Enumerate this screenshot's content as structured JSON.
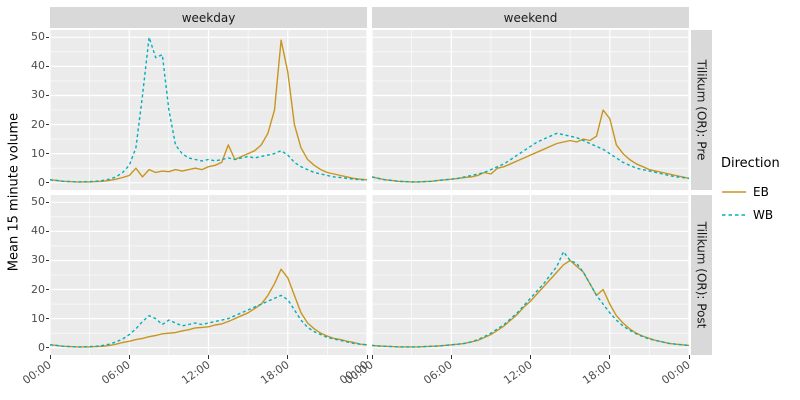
{
  "figure": {
    "y_axis_title": "Mean 15 minute volume",
    "facet_cols": [
      "weekday",
      "weekend"
    ],
    "facet_rows": [
      "Tilikum (OR): Pre",
      "Tilikum (OR): Post"
    ],
    "x_tick_values": [
      0,
      6,
      12,
      18,
      24
    ],
    "x_tick_labels": [
      "00:00",
      "06:00",
      "12:00",
      "18:00",
      "00:00"
    ],
    "y_tick_values": [
      0,
      10,
      20,
      30,
      40,
      50
    ],
    "y_tick_labels": [
      "0",
      "10",
      "20",
      "30",
      "40",
      "50"
    ],
    "colors": {
      "EB": "#C8961E",
      "WB": "#00AFBB",
      "panel_bg": "#EBEBEB",
      "strip_bg": "#D9D9D9",
      "grid": "#FFFFFF",
      "axis_text": "#4D4D4D"
    }
  },
  "legend": {
    "title": "Direction",
    "entries": [
      {
        "label": "EB",
        "style": "solid"
      },
      {
        "label": "WB",
        "style": "dashed"
      }
    ]
  },
  "chart_data": {
    "type": "line",
    "x_unit": "hour of day",
    "ylim": [
      0,
      50
    ],
    "x": [
      0,
      0.5,
      1,
      1.5,
      2,
      2.5,
      3,
      3.5,
      4,
      4.5,
      5,
      5.5,
      6,
      6.5,
      7,
      7.5,
      8,
      8.5,
      9,
      9.5,
      10,
      10.5,
      11,
      11.5,
      12,
      12.5,
      13,
      13.5,
      14,
      14.5,
      15,
      15.5,
      16,
      16.5,
      17,
      17.5,
      18,
      18.5,
      19,
      19.5,
      20,
      20.5,
      21,
      21.5,
      22,
      22.5,
      23,
      23.5,
      24
    ],
    "panels": [
      {
        "facet_row": "Tilikum (OR): Pre",
        "facet_col": "weekday",
        "series": [
          {
            "name": "EB",
            "values": [
              1,
              0.8,
              0.5,
              0.4,
              0.3,
              0.3,
              0.3,
              0.4,
              0.5,
              0.8,
              1.2,
              1.8,
              2.5,
              5,
              2,
              4.5,
              3.5,
              4,
              3.8,
              4.5,
              4,
              4.5,
              5,
              4.5,
              5.5,
              6,
              7,
              13,
              8,
              9,
              10,
              11,
              13,
              17,
              25,
              49,
              38,
              20,
              12,
              8,
              6,
              4.5,
              3.5,
              3,
              2.5,
              2,
              1.5,
              1.2,
              1
            ]
          },
          {
            "name": "WB",
            "values": [
              1,
              0.8,
              0.5,
              0.4,
              0.3,
              0.3,
              0.4,
              0.5,
              0.8,
              1.2,
              2,
              3.5,
              6,
              12,
              30,
              50,
              43,
              44,
              25,
              13,
              10,
              8.5,
              8,
              7.5,
              8,
              7.5,
              8,
              8.5,
              8,
              8.5,
              9,
              8.5,
              9,
              9.5,
              10,
              11,
              9.5,
              7,
              5.5,
              4.5,
              3.5,
              3,
              2.5,
              2,
              1.8,
              1.5,
              1.2,
              1,
              1
            ]
          }
        ]
      },
      {
        "facet_row": "Tilikum (OR): Pre",
        "facet_col": "weekend",
        "series": [
          {
            "name": "EB",
            "values": [
              2,
              1.5,
              1,
              0.8,
              0.5,
              0.4,
              0.3,
              0.3,
              0.4,
              0.5,
              0.8,
              1,
              1.2,
              1.5,
              1.8,
              2,
              2.5,
              3.5,
              3,
              5,
              5.5,
              6.5,
              7.5,
              8.5,
              9.5,
              10.5,
              11.5,
              12.5,
              13.5,
              14,
              14.5,
              14,
              15,
              14.5,
              16,
              25,
              22,
              13,
              10,
              8,
              6.5,
              5.5,
              4.5,
              4,
              3.5,
              3,
              2.5,
              2,
              1.5
            ]
          },
          {
            "name": "WB",
            "values": [
              2,
              1.5,
              1,
              0.8,
              0.5,
              0.4,
              0.3,
              0.3,
              0.4,
              0.5,
              0.8,
              1,
              1.2,
              1.5,
              2,
              2.5,
              3,
              3.5,
              4.5,
              5.5,
              6.5,
              8,
              9.5,
              11,
              12.5,
              14,
              15,
              16,
              17,
              16.5,
              16,
              15.5,
              14.5,
              13.5,
              12.5,
              11.5,
              10,
              8.5,
              7,
              6,
              5,
              4.5,
              4,
              3.5,
              3,
              2.5,
              2,
              1.8,
              1.5
            ]
          }
        ]
      },
      {
        "facet_row": "Tilikum (OR): Post",
        "facet_col": "weekday",
        "series": [
          {
            "name": "EB",
            "values": [
              1,
              0.8,
              0.5,
              0.4,
              0.3,
              0.3,
              0.3,
              0.4,
              0.5,
              0.8,
              1.2,
              1.8,
              2.2,
              2.8,
              3.2,
              3.8,
              4.2,
              4.8,
              5,
              5.2,
              5.8,
              6.2,
              6.8,
              7,
              7.2,
              7.8,
              8.2,
              9,
              10,
              11,
              12,
              13.5,
              15,
              18,
              22,
              27,
              24,
              18,
              12,
              8.5,
              6.5,
              5,
              4,
              3.2,
              2.8,
              2.2,
              1.8,
              1.2,
              1
            ]
          },
          {
            "name": "WB",
            "values": [
              1,
              0.8,
              0.5,
              0.4,
              0.3,
              0.3,
              0.4,
              0.5,
              0.8,
              1.2,
              2,
              3,
              4.5,
              6.5,
              9,
              11,
              10,
              8,
              9.5,
              8.5,
              7.5,
              8,
              8.5,
              8,
              8.5,
              9,
              9.5,
              10,
              11,
              12,
              13,
              14,
              15,
              16,
              17,
              18,
              16.5,
              13,
              9.5,
              7,
              5.5,
              4.5,
              3.5,
              3,
              2.5,
              2,
              1.5,
              1.2,
              1
            ]
          }
        ]
      },
      {
        "facet_row": "Tilikum (OR): Post",
        "facet_col": "weekend",
        "series": [
          {
            "name": "EB",
            "values": [
              0.8,
              0.6,
              0.5,
              0.4,
              0.3,
              0.3,
              0.3,
              0.3,
              0.4,
              0.5,
              0.6,
              0.8,
              1,
              1.2,
              1.5,
              2,
              2.5,
              3.5,
              4.5,
              6,
              7.5,
              9.5,
              11.5,
              14,
              16,
              18.5,
              21,
              23.5,
              26,
              28.5,
              30,
              28,
              26,
              22,
              18,
              20,
              15,
              11,
              8.5,
              6.5,
              5,
              4,
              3.2,
              2.5,
              2,
              1.5,
              1.2,
              1,
              0.8
            ]
          },
          {
            "name": "WB",
            "values": [
              0.8,
              0.6,
              0.5,
              0.4,
              0.3,
              0.3,
              0.3,
              0.3,
              0.4,
              0.5,
              0.6,
              0.8,
              1,
              1.2,
              1.5,
              2,
              2.8,
              3.8,
              5,
              6.5,
              8,
              10,
              12,
              14.5,
              17,
              19.5,
              22,
              25,
              28,
              33,
              30,
              29,
              26,
              22,
              18,
              15,
              12,
              9.5,
              7.5,
              6,
              4.8,
              3.8,
              3,
              2.5,
              2,
              1.5,
              1.2,
              1,
              0.8
            ]
          }
        ]
      }
    ]
  }
}
